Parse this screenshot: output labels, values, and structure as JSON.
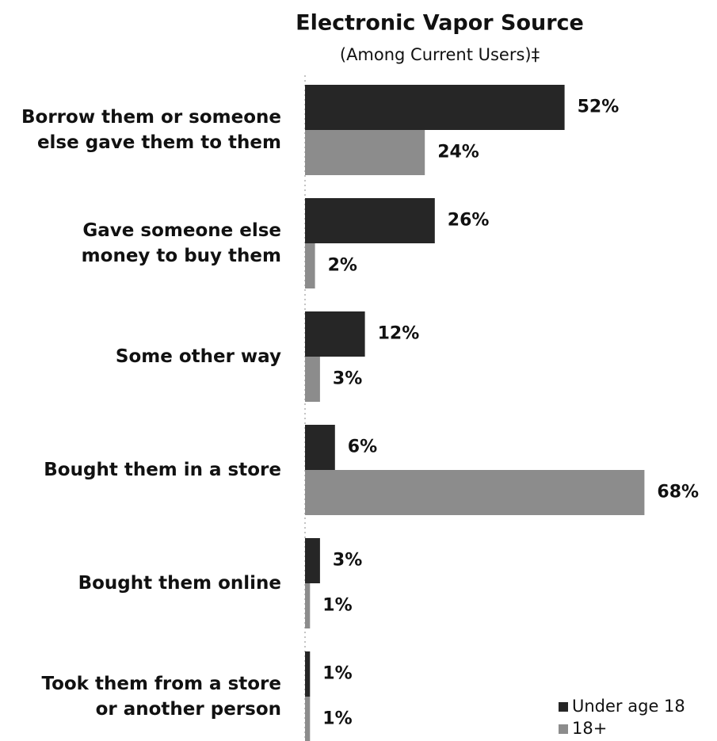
{
  "chart_data": {
    "type": "hbar",
    "title": "Electronic Vapor Source",
    "subtitle": "(Among Current Users)‡",
    "categories": [
      "Borrow them or someone\nelse gave them to them",
      "Gave someone else\nmoney to buy them",
      "Some other way",
      "Bought them in a store",
      "Bought them online",
      "Took them from a store\nor another person"
    ],
    "series": [
      {
        "name": "Under age 18",
        "color": "#262626",
        "values": [
          52,
          26,
          12,
          6,
          3,
          1
        ],
        "value_labels": [
          "52%",
          "26%",
          "12%",
          "6%",
          "3%",
          "1%"
        ]
      },
      {
        "name": "18+",
        "color": "#8c8c8c",
        "values": [
          24,
          2,
          3,
          68,
          1,
          1
        ],
        "value_labels": [
          "24%",
          "2%",
          "3%",
          "68%",
          "1%",
          "1%"
        ]
      }
    ],
    "legend": "bottom-right"
  }
}
